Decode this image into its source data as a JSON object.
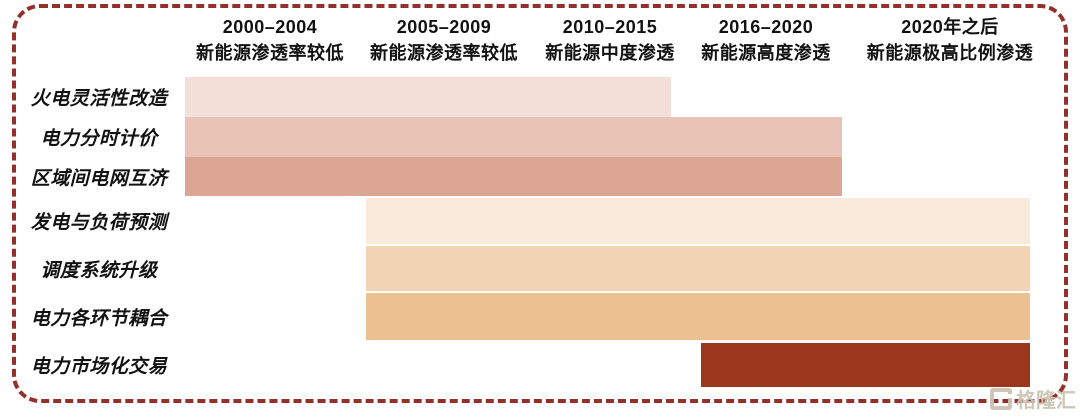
{
  "figure": {
    "watermark": "格隆汇",
    "border_color": "#93302A",
    "background_color": "#FFFFFF",
    "text_color": "#121212"
  },
  "chart_data": {
    "type": "bar",
    "subtype": "gantt-timeline",
    "title": "",
    "xlabel": "",
    "ylabel": "",
    "legend": "none",
    "axis_position": "top",
    "x_range_columns": [
      0,
      5
    ],
    "columns": [
      {
        "period": "2000–2004",
        "description": "新能源渗透率较低"
      },
      {
        "period": "2005–2009",
        "description": "新能源渗透率较低"
      },
      {
        "period": "2010–2015",
        "description": "新能源中度渗透"
      },
      {
        "period": "2016–2020",
        "description": "新能源高度渗透"
      },
      {
        "period": "2020年之后",
        "description": "新能源极高比例渗透"
      }
    ],
    "rows": [
      {
        "label": "火电灵活性改造",
        "start": 0.0,
        "end": 2.84,
        "color": "#F5E0D9"
      },
      {
        "label": "电力分时计价",
        "start": 0.0,
        "end": 3.84,
        "color": "#E9C3B6"
      },
      {
        "label": "区域间电网互济",
        "start": 0.0,
        "end": 3.84,
        "color": "#DCA694"
      },
      {
        "label": "发电与负荷预测",
        "start": 1.06,
        "end": 4.94,
        "color": "#FAEADB"
      },
      {
        "label": "调度系统升级",
        "start": 1.06,
        "end": 4.94,
        "color": "#F3D5B5"
      },
      {
        "label": "电力各环节耦合",
        "start": 1.06,
        "end": 4.94,
        "color": "#EBC192"
      },
      {
        "label": "电力市场化交易",
        "start": 3.02,
        "end": 4.94,
        "color": "#9A371C"
      }
    ]
  }
}
